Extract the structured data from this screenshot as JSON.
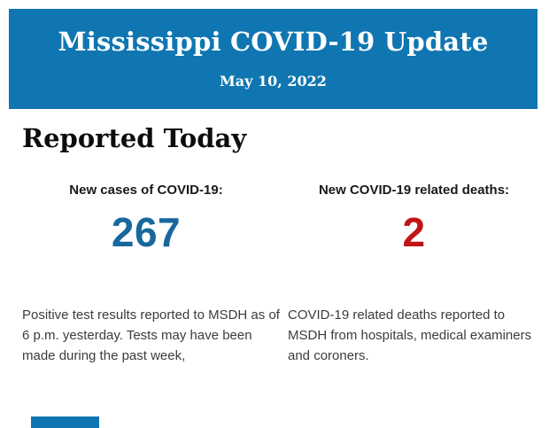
{
  "page": {
    "background_color": "#ffffff"
  },
  "header": {
    "title": "Mississippi COVID-19 Update",
    "date": "May 10, 2022",
    "background_color": "#0f76b2",
    "text_color": "#ffffff"
  },
  "section": {
    "heading": "Reported Today"
  },
  "stats": [
    {
      "label": "New cases of COVID-19:",
      "value": "267",
      "value_color": "#17689d",
      "description": "Positive test results reported to MSDH as of 6 p.m. yesterday. Tests may have been made during the past week,"
    },
    {
      "label": "New COVID-19 related deaths:",
      "value": "2",
      "value_color": "#c11414",
      "description": "COVID-19 related deaths reported to MSDH from hospitals, medical examiners and coroners."
    }
  ],
  "footer": {
    "partial_block_color": "#0f76b2"
  }
}
